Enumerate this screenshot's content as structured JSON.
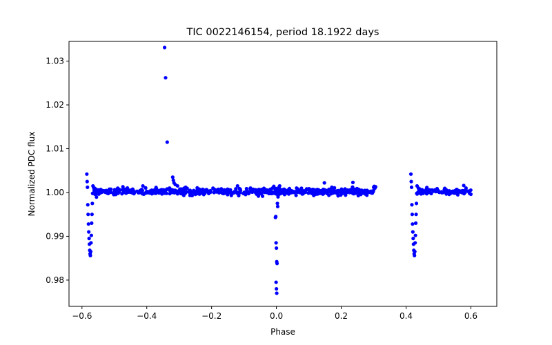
{
  "chart_data": {
    "type": "scatter",
    "title": "TIC 0022146154, period 18.1922 days",
    "xlabel": "Phase",
    "ylabel": "Normalized PDC flux",
    "xlim": [
      -0.64,
      0.68
    ],
    "ylim": [
      0.974,
      1.0345
    ],
    "xticks": [
      -0.6,
      -0.4,
      -0.2,
      0.0,
      0.2,
      0.4,
      0.6
    ],
    "xtick_labels": [
      "−0.6",
      "−0.4",
      "−0.2",
      "0.0",
      "0.2",
      "0.4",
      "0.6"
    ],
    "yticks": [
      0.98,
      0.99,
      1.0,
      1.01,
      1.02,
      1.03
    ],
    "ytick_labels": [
      "0.98",
      "0.99",
      "1.00",
      "1.01",
      "1.02",
      "1.03"
    ],
    "grid": false,
    "marker_color": "#0000ff",
    "series": [
      {
        "name": "flux",
        "points": [
          [
            -0.585,
            1.0042
          ],
          [
            -0.584,
            1.0025
          ],
          [
            -0.583,
            1.0012
          ],
          [
            -0.582,
            0.9972
          ],
          [
            -0.581,
            0.995
          ],
          [
            -0.58,
            0.9928
          ],
          [
            -0.579,
            0.991
          ],
          [
            -0.578,
            0.9895
          ],
          [
            -0.577,
            0.9882
          ],
          [
            -0.576,
            0.9868
          ],
          [
            -0.575,
            0.986
          ],
          [
            -0.574,
            0.9856
          ],
          [
            -0.573,
            0.9865
          ],
          [
            -0.572,
            0.9885
          ],
          [
            -0.571,
            0.9902
          ],
          [
            -0.57,
            0.993
          ],
          [
            -0.569,
            0.995
          ],
          [
            -0.568,
            0.9975
          ],
          [
            -0.567,
            0.9998
          ],
          [
            -0.566,
            1.0015
          ],
          [
            -0.562,
            1.001
          ],
          [
            -0.558,
            1.0008
          ],
          [
            -0.554,
            1.0003
          ],
          [
            -0.55,
            1.0006
          ],
          [
            -0.345,
            1.0331
          ],
          [
            -0.342,
            1.0262
          ],
          [
            -0.337,
            1.0115
          ],
          [
            -0.32,
            1.0035
          ],
          [
            -0.318,
            1.0028
          ],
          [
            -0.316,
            1.0022
          ],
          [
            -0.312,
            1.0018
          ],
          [
            -0.305,
            1.0015
          ],
          [
            -0.412,
            1.0015
          ],
          [
            -0.28,
            1.0012
          ],
          [
            -0.26,
            0.9993
          ],
          [
            -0.12,
            1.0015
          ],
          [
            -0.08,
            1.001
          ],
          [
            -0.003,
            0.9943
          ],
          [
            -0.002,
            0.9945
          ],
          [
            -0.001,
            0.9885
          ],
          [
            0.0,
            0.9873
          ],
          [
            0.001,
            0.9842
          ],
          [
            0.002,
            0.9838
          ],
          [
            -0.001,
            0.9795
          ],
          [
            0.0,
            0.978
          ],
          [
            0.001,
            0.977
          ],
          [
            0.003,
            0.9975
          ],
          [
            0.004,
            0.9968
          ],
          [
            0.005,
            0.999
          ],
          [
            -0.004,
            0.9998
          ],
          [
            0.006,
            1.0008
          ],
          [
            0.008,
            1.0012
          ],
          [
            -0.008,
            1.0014
          ],
          [
            0.01,
            1.0015
          ],
          [
            -0.012,
            1.001
          ],
          [
            0.148,
            1.0022
          ],
          [
            0.236,
            1.0023
          ],
          [
            0.3,
            1.0012
          ],
          [
            0.302,
            1.0014
          ],
          [
            0.304,
            1.001
          ],
          [
            0.306,
            1.0013
          ],
          [
            0.415,
            1.0042
          ],
          [
            0.416,
            1.0025
          ],
          [
            0.417,
            1.0012
          ],
          [
            0.418,
            0.9972
          ],
          [
            0.419,
            0.995
          ],
          [
            0.42,
            0.9928
          ],
          [
            0.421,
            0.991
          ],
          [
            0.422,
            0.9895
          ],
          [
            0.423,
            0.9882
          ],
          [
            0.424,
            0.9868
          ],
          [
            0.425,
            0.986
          ],
          [
            0.426,
            0.9856
          ],
          [
            0.427,
            0.9865
          ],
          [
            0.428,
            0.9885
          ],
          [
            0.429,
            0.9902
          ],
          [
            0.43,
            0.993
          ],
          [
            0.431,
            0.995
          ],
          [
            0.432,
            0.9975
          ],
          [
            0.433,
            0.9998
          ],
          [
            0.434,
            1.0015
          ],
          [
            0.438,
            1.001
          ],
          [
            0.442,
            1.0008
          ],
          [
            0.446,
            1.0004
          ],
          [
            0.578,
            1.0016
          ],
          [
            0.585,
            1.001
          ],
          [
            0.59,
            1.0003
          ],
          [
            0.595,
            1.0
          ],
          [
            0.6,
            0.9996
          ]
        ],
        "baseline_segments": [
          {
            "x_start": -0.565,
            "x_end": 0.3,
            "center": 1.0002,
            "scatter": 0.0006,
            "count": 620
          },
          {
            "x_start": 0.434,
            "x_end": 0.6,
            "center": 1.0002,
            "scatter": 0.0005,
            "count": 110
          }
        ]
      }
    ]
  }
}
